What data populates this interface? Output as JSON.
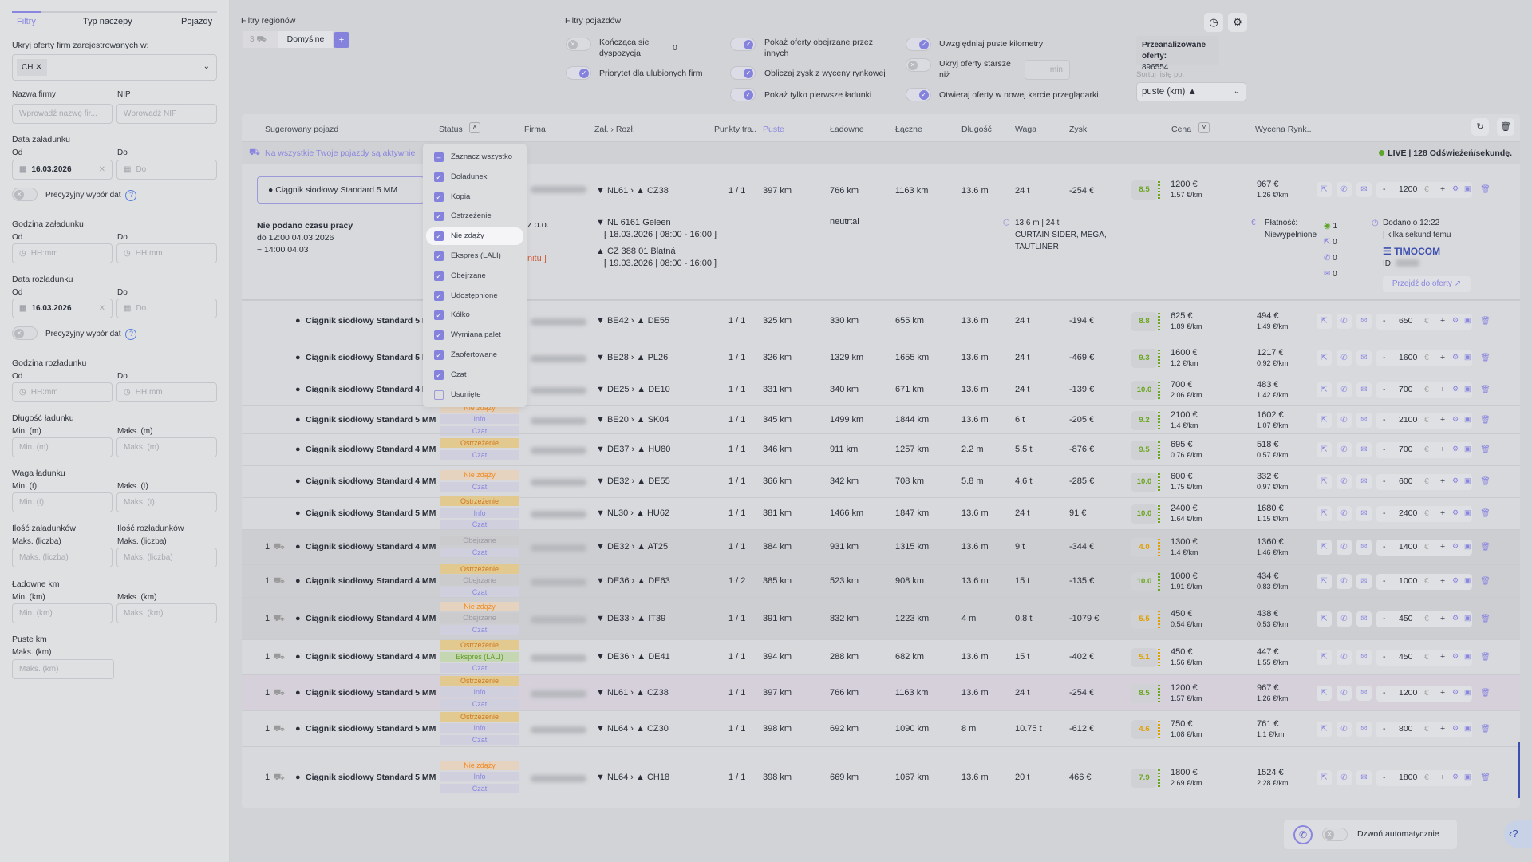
{
  "sidebar": {
    "tabs": [
      "Filtry",
      "Typ naczepy",
      "Pojazdy"
    ],
    "hide_companies_label": "Ukryj oferty firm zarejestrowanych w:",
    "hide_companies_chip": "CH",
    "company_name_label": "Nazwa firmy",
    "company_name_placeholder": "Wprowadź nazwę fir...",
    "nip_label": "NIP",
    "nip_placeholder": "Wprowadź NIP",
    "load_date_label": "Data załadunku",
    "from": "Od",
    "to": "Do",
    "load_date_from": "16.03.2026",
    "load_date_to_placeholder": "Do",
    "precise_dates": "Precyzyjny wybór dat",
    "load_hour_label": "Godzina załadunku",
    "hour_placeholder": "HH:mm",
    "unload_date_label": "Data rozładunku",
    "unload_date_from": "16.03.2026",
    "unload_hour_label": "Godzina rozładunku",
    "length_label": "Długość ładunku",
    "min_m": "Min. (m)",
    "max_m": "Maks. (m)",
    "weight_label": "Waga ładunku",
    "min_t": "Min. (t)",
    "max_t": "Maks. (t)",
    "loads_count_label": "Ilość załadunków",
    "unloads_count_label": "Ilość rozładunków",
    "max_count": "Maks. (liczba)",
    "loaded_km_label": "Ładowne km",
    "min_km": "Min. (km)",
    "max_km": "Maks. (km)",
    "empty_km_label": "Puste km"
  },
  "regions": {
    "title": "Filtry regionów",
    "count": "3",
    "preset": "Domyślne",
    "add": "+"
  },
  "vehicle_filters": {
    "title": "Filtry pojazdów",
    "ending_dispatch": "Kończąca sie dyspozycja",
    "ending_dispatch_value": "0",
    "favorite_priority": "Priorytet dla ulubionych firm",
    "show_viewed": "Pokaż oferty obejrzane przez innych",
    "market_profit": "Obliczaj zysk z wyceny rynkowej",
    "first_loads": "Pokaż tylko pierwsze ładunki",
    "empty_km": "Uwzględniaj puste kilometry",
    "hide_older": "Ukryj oferty starsze niż",
    "hide_older_unit": "min",
    "new_tab": "Otwieraj oferty w nowej karcie przeglądarki."
  },
  "stats": {
    "analyzed_label": "Przeanalizowane oferty:",
    "analyzed_value": "896554",
    "sort_label": "Sortuj listę po:",
    "sort_value": "puste (km) ▲"
  },
  "table": {
    "headers": {
      "vehicle": "Sugerowany pojazd",
      "status": "Status",
      "company": "Firma",
      "route": "Zał. › Rozł.",
      "points": "Punkty tra..",
      "empty": "Puste",
      "loaded": "Ładowne",
      "total": "Łączne",
      "length": "Długość",
      "weight": "Waga",
      "profit": "Zysk",
      "price": "Cena",
      "market": "Wycena Rynk.."
    },
    "active_notice": "Na wszystkie Twoje pojazdy są aktywnie",
    "live": "LIVE | 128 Odświeżeń/sekundę."
  },
  "expanded": {
    "vehicle": "Ciągnik siodłowy Standard 5 MM",
    "work_time": "Nie podano czasu pracy",
    "until": "do 12:00 04.03.2026",
    "approx": "~ 14:00 04.03",
    "company_suffix": "z o.o.",
    "red_note": "nitu ]",
    "route": "NL61",
    "dest": "CZ38",
    "points": "1 / 1",
    "empty": "397 km",
    "loaded": "766 km",
    "total": "1163 km",
    "length": "13.6 m",
    "weight": "24 t",
    "profit": "-254 €",
    "score": "8.5",
    "price": "1200 €",
    "price_km": "1.57 €/km",
    "market": "967 €",
    "market_km": "1.26 €/km",
    "bid": "1200",
    "load_place": "NL 6161 Geleen",
    "load_window": "[ 18.03.2026 | 08:00 - 16:00 ]",
    "unload_place": "CZ 388 01 Blatná",
    "unload_window": "[ 19.03.2026 | 08:00 - 16:00 ]",
    "market_mood": "neutrtal",
    "dims": "13.6 m | 24 t",
    "trailer": "CURTAIN SIDER, MEGA, TAUTLINER",
    "payment": "Płatność: Niewypełnione",
    "views": "1",
    "shares": "0",
    "calls": "0",
    "mails": "0",
    "added": "Dodano o 12:22",
    "added_ago": "| kilka sekund temu",
    "source": "TIMOCOM",
    "id_label": "ID:",
    "goto": "Przejdź do oferty ↗"
  },
  "rows": [
    {
      "count": "",
      "vehicle": "Ciągnik siodłowy Standard 5 MM",
      "badges": [],
      "from": "BE42",
      "to": "DE55",
      "points": "1 / 1",
      "empty": "325 km",
      "loaded": "330 km",
      "total": "655 km",
      "length": "13.6 m",
      "weight": "24 t",
      "profit": "-194 €",
      "score": "8.8",
      "price": "625 €",
      "price_km": "1.89 €/km",
      "market": "494 €",
      "market_km": "1.49 €/km",
      "bid": "650"
    },
    {
      "count": "",
      "vehicle": "Ciągnik siodłowy Standard 5 MM",
      "badges": [],
      "from": "BE28",
      "to": "PL26",
      "points": "1 / 1",
      "empty": "326 km",
      "loaded": "1329 km",
      "total": "1655 km",
      "length": "13.6 m",
      "weight": "24 t",
      "profit": "-469 €",
      "score": "9.3",
      "price": "1600 €",
      "price_km": "1.2 €/km",
      "market": "1217 €",
      "market_km": "0.92 €/km",
      "bid": "1600"
    },
    {
      "count": "",
      "vehicle": "Ciągnik siodłowy Standard 4 MM",
      "badges": [],
      "from": "DE25",
      "to": "DE10",
      "points": "1 / 1",
      "empty": "331 km",
      "loaded": "340 km",
      "total": "671 km",
      "length": "13.6 m",
      "weight": "24 t",
      "profit": "-139 €",
      "score": "10.0",
      "price": "700 €",
      "price_km": "2.06 €/km",
      "market": "483 €",
      "market_km": "1.42 €/km",
      "bid": "700"
    },
    {
      "count": "",
      "vehicle": "Ciągnik siodłowy Standard 5 MM",
      "badges": [
        [
          "late",
          "Nie zdąży"
        ],
        [
          "info",
          "Info"
        ],
        [
          "chat",
          "Czat"
        ]
      ],
      "from": "BE20",
      "to": "SK04",
      "points": "1 / 1",
      "empty": "345 km",
      "loaded": "1499 km",
      "total": "1844 km",
      "length": "13.6 m",
      "weight": "6 t",
      "profit": "-205 €",
      "score": "9.2",
      "price": "2100 €",
      "price_km": "1.4 €/km",
      "market": "1602 €",
      "market_km": "1.07 €/km",
      "bid": "2100"
    },
    {
      "count": "",
      "vehicle": "Ciągnik siodłowy Standard 4 MM",
      "badges": [
        [
          "warn",
          "Ostrzeżenie"
        ],
        [
          "chat",
          "Czat"
        ]
      ],
      "from": "DE37",
      "to": "HU80",
      "points": "1 / 1",
      "empty": "346 km",
      "loaded": "911 km",
      "total": "1257 km",
      "length": "2.2 m",
      "weight": "5.5 t",
      "profit": "-876 €",
      "score": "9.5",
      "price": "695 €",
      "price_km": "0.76 €/km",
      "market": "518 €",
      "market_km": "0.57 €/km",
      "bid": "700"
    },
    {
      "count": "",
      "vehicle": "Ciągnik siodłowy Standard 4 MM",
      "badges": [
        [
          "late",
          "Nie zdąży"
        ],
        [
          "chat",
          "Czat"
        ]
      ],
      "from": "DE32",
      "to": "DE55",
      "points": "1 / 1",
      "empty": "366 km",
      "loaded": "342 km",
      "total": "708 km",
      "length": "5.8 m",
      "weight": "4.6 t",
      "profit": "-285 €",
      "score": "10.0",
      "price": "600 €",
      "price_km": "1.75 €/km",
      "market": "332 €",
      "market_km": "0.97 €/km",
      "bid": "600"
    },
    {
      "count": "",
      "vehicle": "Ciągnik siodłowy Standard 5 MM",
      "badges": [
        [
          "warn",
          "Ostrzeżenie"
        ],
        [
          "info",
          "Info"
        ],
        [
          "chat",
          "Czat"
        ]
      ],
      "from": "NL30",
      "to": "HU62",
      "points": "1 / 1",
      "empty": "381 km",
      "loaded": "1466 km",
      "total": "1847 km",
      "length": "13.6 m",
      "weight": "24 t",
      "profit": "91 €",
      "score": "10.0",
      "price": "2400 €",
      "price_km": "1.64 €/km",
      "market": "1680 €",
      "market_km": "1.15 €/km",
      "bid": "2400"
    },
    {
      "count": "1",
      "vehicle": "Ciągnik siodłowy Standard 4 MM",
      "badges": [
        [
          "seen",
          "Obejrzane"
        ],
        [
          "chat",
          "Czat"
        ]
      ],
      "from": "DE32",
      "to": "AT25",
      "points": "1 / 1",
      "empty": "384 km",
      "loaded": "931 km",
      "total": "1315 km",
      "length": "13.6 m",
      "weight": "9 t",
      "profit": "-344 €",
      "score": "4.0",
      "price": "1300 €",
      "price_km": "1.4 €/km",
      "market": "1360 €",
      "market_km": "1.46 €/km",
      "bid": "1400",
      "tone": "seen"
    },
    {
      "count": "1",
      "vehicle": "Ciągnik siodłowy Standard 4 MM",
      "badges": [
        [
          "warn",
          "Ostrzeżenie"
        ],
        [
          "seen",
          "Obejrzane"
        ],
        [
          "chat",
          "Czat"
        ]
      ],
      "from": "DE36",
      "to": "DE63",
      "points": "1 / 2",
      "empty": "385 km",
      "loaded": "523 km",
      "total": "908 km",
      "length": "13.6 m",
      "weight": "15 t",
      "profit": "-135 €",
      "score": "10.0",
      "price": "1000 €",
      "price_km": "1.91 €/km",
      "market": "434 €",
      "market_km": "0.83 €/km",
      "bid": "1000",
      "tone": "seen"
    },
    {
      "count": "1",
      "vehicle": "Ciągnik siodłowy Standard 4 MM",
      "badges": [
        [
          "late",
          "Nie zdąży"
        ],
        [
          "seen",
          "Obejrzane"
        ],
        [
          "chat",
          "Czat"
        ]
      ],
      "from": "DE33",
      "to": "IT39",
      "points": "1 / 1",
      "empty": "391 km",
      "loaded": "832 km",
      "total": "1223 km",
      "length": "4 m",
      "weight": "0.8 t",
      "profit": "-1079 €",
      "score": "5.5",
      "price": "450 €",
      "price_km": "0.54 €/km",
      "market": "438 €",
      "market_km": "0.53 €/km",
      "bid": "450",
      "tone": "seen"
    },
    {
      "count": "1",
      "vehicle": "Ciągnik siodłowy Standard 4 MM",
      "badges": [
        [
          "warn",
          "Ostrzeżenie"
        ],
        [
          "expr",
          "Ekspres (LALI)"
        ],
        [
          "chat",
          "Czat"
        ]
      ],
      "from": "DE36",
      "to": "DE41",
      "points": "1 / 1",
      "empty": "394 km",
      "loaded": "288 km",
      "total": "682 km",
      "length": "13.6 m",
      "weight": "15 t",
      "profit": "-402 €",
      "score": "5.1",
      "price": "450 €",
      "price_km": "1.56 €/km",
      "market": "447 €",
      "market_km": "1.55 €/km",
      "bid": "450"
    },
    {
      "count": "1",
      "vehicle": "Ciągnik siodłowy Standard 5 MM",
      "badges": [
        [
          "warn",
          "Ostrzeżenie"
        ],
        [
          "info",
          "Info"
        ],
        [
          "chat",
          "Czat"
        ]
      ],
      "from": "NL61",
      "to": "CZ38",
      "points": "1 / 1",
      "empty": "397 km",
      "loaded": "766 km",
      "total": "1163 km",
      "length": "13.6 m",
      "weight": "24 t",
      "profit": "-254 €",
      "score": "8.5",
      "price": "1200 €",
      "price_km": "1.57 €/km",
      "market": "967 €",
      "market_km": "1.26 €/km",
      "bid": "1200",
      "tone": "sel"
    },
    {
      "count": "1",
      "vehicle": "Ciągnik siodłowy Standard 5 MM",
      "badges": [
        [
          "warn",
          "Ostrzeżenie"
        ],
        [
          "info",
          "Info"
        ],
        [
          "chat",
          "Czat"
        ]
      ],
      "from": "NL64",
      "to": "CZ30",
      "points": "1 / 1",
      "empty": "398 km",
      "loaded": "692 km",
      "total": "1090 km",
      "length": "8 m",
      "weight": "10.75 t",
      "profit": "-612 €",
      "score": "4.6",
      "price": "750 €",
      "price_km": "1.08 €/km",
      "market": "761 €",
      "market_km": "1.1 €/km",
      "bid": "800"
    },
    {
      "count": "1",
      "vehicle": "Ciągnik siodłowy Standard 5 MM",
      "badges": [
        [
          "late",
          "Nie zdąży"
        ],
        [
          "info",
          "Info"
        ],
        [
          "chat",
          "Czat"
        ]
      ],
      "from": "NL64",
      "to": "CH18",
      "points": "1 / 1",
      "empty": "398 km",
      "loaded": "669 km",
      "total": "1067 km",
      "length": "13.6 m",
      "weight": "20 t",
      "profit": "466 €",
      "score": "7.9",
      "price": "1800 €",
      "price_km": "2.69 €/km",
      "market": "1524 €",
      "market_km": "2.28 €/km",
      "bid": "1800"
    }
  ],
  "currency": "€",
  "status_dropdown": {
    "items": [
      {
        "label": "Zaznacz wszystko",
        "checked": "partial"
      },
      {
        "label": "Doładunek",
        "checked": true
      },
      {
        "label": "Kopia",
        "checked": true
      },
      {
        "label": "Ostrzeżenie",
        "checked": true
      },
      {
        "label": "Nie zdąży",
        "checked": true
      },
      {
        "label": "Ekspres (LALI)",
        "checked": true
      },
      {
        "label": "Obejrzane",
        "checked": true
      },
      {
        "label": "Udostępnione",
        "checked": true
      },
      {
        "label": "Kółko",
        "checked": true
      },
      {
        "label": "Wymiana palet",
        "checked": true
      },
      {
        "label": "Zaofertowane",
        "checked": true
      },
      {
        "label": "Czat",
        "checked": true
      },
      {
        "label": "Usunięte",
        "checked": false
      }
    ]
  },
  "auto_call": {
    "label": "Dzwoń automatycznie"
  },
  "colors": {
    "accent": "#8482dc",
    "green": "#6aa61e",
    "orange": "#e0a000",
    "live": "#5fa52a"
  }
}
